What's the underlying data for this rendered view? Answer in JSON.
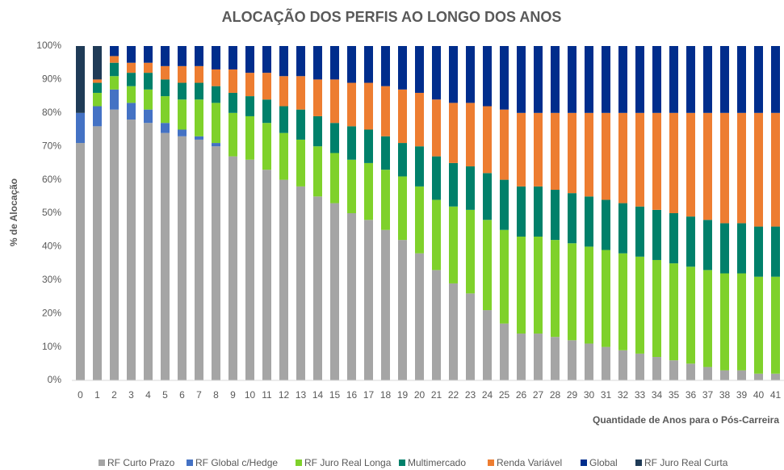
{
  "chart_data": {
    "type": "stacked_bar",
    "title": "ALOCAÇÃO DOS PERFIS AO LONGO DOS ANOS",
    "x_label": "Quantidade de Anos para o Pós-Carreira",
    "y_label": "% de Alocação",
    "categories": [
      "0",
      "1",
      "2",
      "3",
      "4",
      "5",
      "6",
      "7",
      "8",
      "9",
      "10",
      "11",
      "12",
      "13",
      "14",
      "15",
      "16",
      "17",
      "18",
      "19",
      "20",
      "21",
      "22",
      "23",
      "24",
      "25",
      "26",
      "27",
      "28",
      "29",
      "30",
      "31",
      "32",
      "33",
      "34",
      "35",
      "36",
      "37",
      "38",
      "39",
      "40",
      "41"
    ],
    "series": [
      {
        "name": "RF Curto Prazo",
        "color": "#a5a5a5",
        "values": [
          71,
          76,
          81,
          78,
          77,
          74,
          73,
          72,
          70,
          67,
          66,
          63,
          60,
          58,
          55,
          53,
          50,
          48,
          45,
          42,
          38,
          33,
          29,
          26,
          21,
          17,
          14,
          14,
          13,
          12,
          11,
          10,
          9,
          8,
          7,
          6,
          5,
          4,
          3,
          3,
          2,
          2
        ]
      },
      {
        "name": "RF Global c/Hedge",
        "color": "#4472c4",
        "values": [
          9,
          6,
          6,
          5,
          4,
          3,
          2,
          1,
          1,
          0,
          0,
          0,
          0,
          0,
          0,
          0,
          0,
          0,
          0,
          0,
          0,
          0,
          0,
          0,
          0,
          0,
          0,
          0,
          0,
          0,
          0,
          0,
          0,
          0,
          0,
          0,
          0,
          0,
          0,
          0,
          0,
          0
        ]
      },
      {
        "name": "RF Juro Real Longa",
        "color": "#7fd12b",
        "values": [
          0,
          4,
          4,
          5,
          6,
          8,
          9,
          11,
          12,
          13,
          13,
          14,
          14,
          14,
          15,
          15,
          16,
          17,
          18,
          19,
          20,
          21,
          23,
          25,
          27,
          28,
          29,
          29,
          29,
          29,
          29,
          29,
          29,
          29,
          29,
          29,
          29,
          29,
          29,
          29,
          29,
          29
        ]
      },
      {
        "name": "Multimercado",
        "color": "#00806a",
        "values": [
          0,
          3,
          4,
          4,
          5,
          5,
          5,
          5,
          5,
          6,
          6,
          7,
          8,
          9,
          9,
          9,
          10,
          10,
          10,
          10,
          12,
          13,
          13,
          13,
          14,
          15,
          15,
          15,
          15,
          15,
          15,
          15,
          15,
          15,
          15,
          15,
          15,
          15,
          15,
          15,
          15,
          15
        ]
      },
      {
        "name": "Renda Variável",
        "color": "#ed7d31",
        "values": [
          0,
          1,
          2,
          3,
          3,
          4,
          5,
          5,
          5,
          7,
          7,
          8,
          9,
          10,
          11,
          13,
          13,
          14,
          15,
          16,
          16,
          17,
          18,
          19,
          20,
          21,
          22,
          22,
          23,
          24,
          25,
          26,
          27,
          28,
          29,
          30,
          31,
          32,
          33,
          33,
          34,
          34
        ]
      },
      {
        "name": "Global",
        "color": "#002d8c",
        "values": [
          0,
          0,
          3,
          5,
          5,
          6,
          6,
          6,
          7,
          7,
          8,
          8,
          9,
          9,
          10,
          10,
          11,
          11,
          12,
          13,
          14,
          16,
          17,
          17,
          18,
          19,
          20,
          20,
          20,
          20,
          20,
          20,
          20,
          20,
          20,
          20,
          20,
          20,
          20,
          20,
          20,
          20
        ]
      },
      {
        "name": "RF Juro Real Curta",
        "color": "#1f3b57",
        "values": [
          20,
          10,
          0,
          0,
          0,
          0,
          0,
          0,
          0,
          0,
          0,
          0,
          0,
          0,
          0,
          0,
          0,
          0,
          0,
          0,
          0,
          0,
          0,
          0,
          0,
          0,
          0,
          0,
          0,
          0,
          0,
          0,
          0,
          0,
          0,
          0,
          0,
          0,
          0,
          0,
          0,
          0
        ]
      }
    ],
    "ylim": [
      0,
      100
    ],
    "yticks": [
      {
        "value": 0,
        "label": "0%"
      },
      {
        "value": 10,
        "label": "10%"
      },
      {
        "value": 20,
        "label": "20%"
      },
      {
        "value": 30,
        "label": "30%"
      },
      {
        "value": 40,
        "label": "40%"
      },
      {
        "value": 50,
        "label": "50%"
      },
      {
        "value": 60,
        "label": "60%"
      },
      {
        "value": 70,
        "label": "70%"
      },
      {
        "value": 80,
        "label": "80%"
      },
      {
        "value": 90,
        "label": "90%"
      },
      {
        "value": 100,
        "label": "100%"
      }
    ],
    "grid": false,
    "legend": "bottom"
  }
}
